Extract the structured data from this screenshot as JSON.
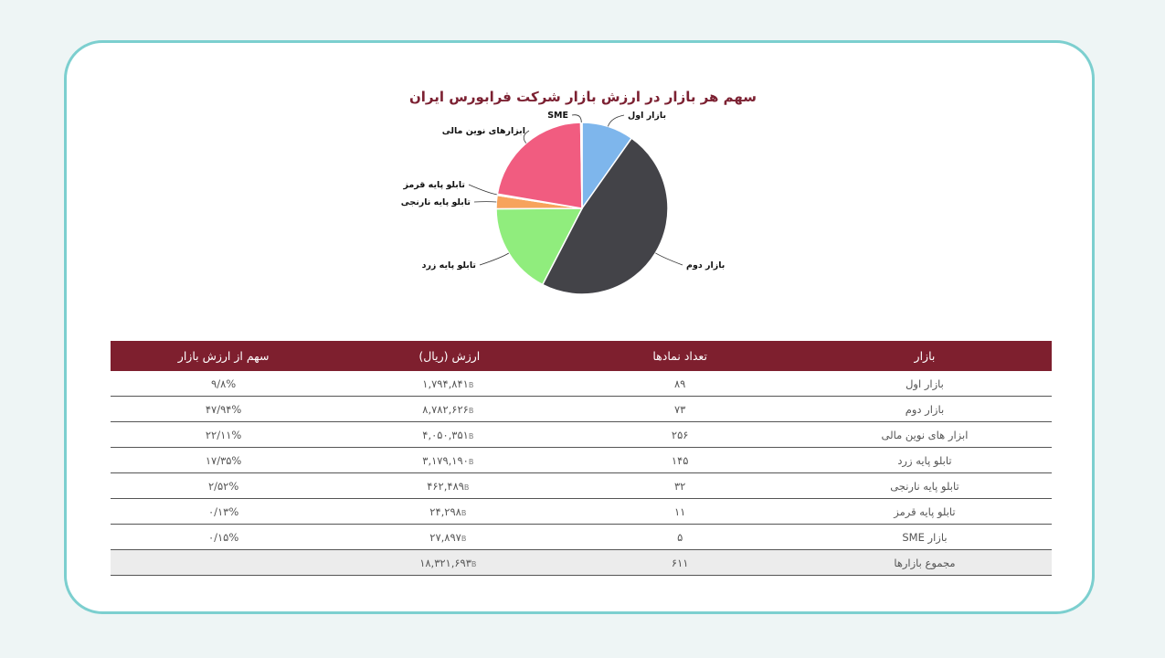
{
  "colors": {
    "frame": "#7ccfcf",
    "header_bg": "#7e1f2e",
    "title": "#7c2132",
    "total_row_bg": "#ececec"
  },
  "chart_data": {
    "type": "pie",
    "title": "سهم هر بازار در ارزش بازار شرکت فرابورس ایران",
    "labels": [
      "بازار اول",
      "بازار دوم",
      "تابلو پایه زرد",
      "تابلو پایه نارنجی",
      "تابلو پایه قرمز",
      "ابزارهای نوین مالی",
      "SME"
    ],
    "values": [
      9.8,
      47.94,
      17.35,
      2.52,
      0.13,
      22.11,
      0.15
    ],
    "colors": [
      "#7eb6ec",
      "#434348",
      "#90ed7d",
      "#f7a35c",
      "#8085e9",
      "#f15c80",
      "#e4d354"
    ]
  },
  "table": {
    "headers": [
      "بازار",
      "تعداد نمادها",
      "ارزش (ریال)",
      "سهم از ارزش بازار"
    ],
    "currency_glyph": "B",
    "rows": [
      {
        "market": "بازار اول",
        "count": "۸۹",
        "value": "۱,۷۹۴,۸۴۱",
        "share": "۹/۸%"
      },
      {
        "market": "بازار دوم",
        "count": "۷۳",
        "value": "۸,۷۸۲,۶۲۶",
        "share": "۴۷/۹۴%"
      },
      {
        "market": "ابزار های نوین مالی",
        "count": "۲۵۶",
        "value": "۴,۰۵۰,۳۵۱",
        "share": "۲۲/۱۱%"
      },
      {
        "market": "تابلو پایه زرد",
        "count": "۱۴۵",
        "value": "۳,۱۷۹,۱۹۰",
        "share": "۱۷/۳۵%"
      },
      {
        "market": "تابلو پایه نارنجی",
        "count": "۳۲",
        "value": "۴۶۲,۴۸۹",
        "share": "۲/۵۲%"
      },
      {
        "market": "تابلو پایه قرمز",
        "count": "۱۱",
        "value": "۲۴,۲۹۸",
        "share": "۰/۱۳%"
      },
      {
        "market": "بازار SME",
        "count": "۵",
        "value": "۲۷,۸۹۷",
        "share": "۰/۱۵%"
      }
    ],
    "total": {
      "market": "مجموع بازارها",
      "count": "۶۱۱",
      "value": "۱۸,۳۲۱,۶۹۳",
      "share": ""
    }
  }
}
